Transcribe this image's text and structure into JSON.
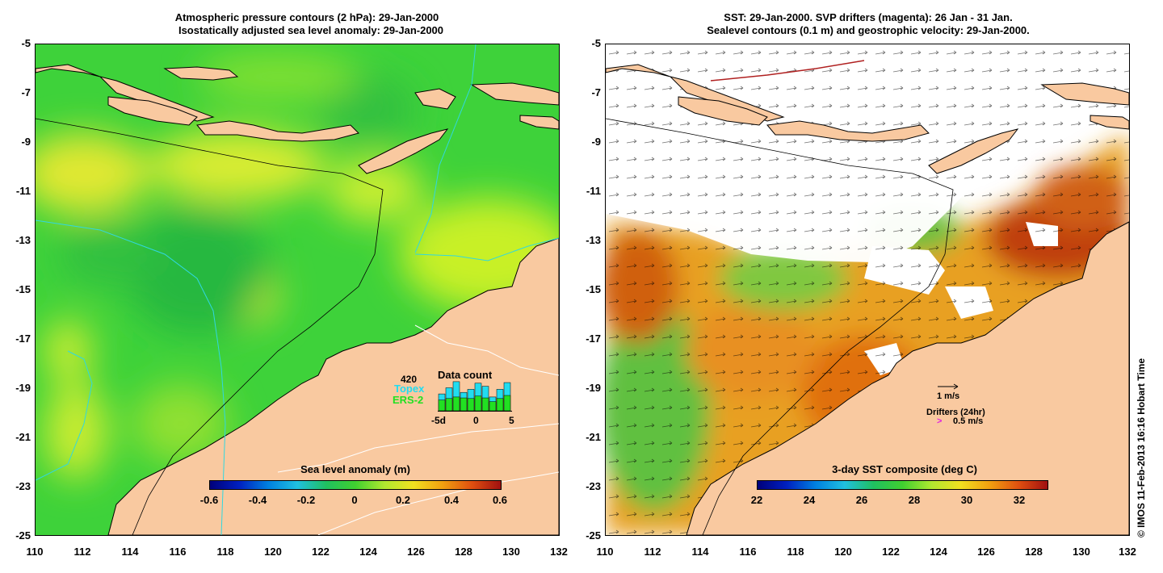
{
  "left": {
    "title_line1": "Atmospheric pressure contours (2 hPa): 29-Jan-2000",
    "title_line2": "Isostatically adjusted sea level anomaly: 29-Jan-2000",
    "colorbar": {
      "title": "Sea level anomaly (m)",
      "labels": [
        "-0.6",
        "-0.4",
        "-0.2",
        "0",
        "0.2",
        "0.4",
        "0.6"
      ]
    },
    "inset": {
      "count": "420",
      "title": "Data count",
      "topex_label": "Topex",
      "ers_label": "ERS-2",
      "x_labels": [
        "-5d",
        "0",
        "5"
      ],
      "topex_color": "#22dcf0",
      "ers_color": "#22e022",
      "bars": [
        {
          "topex": 0.55,
          "ers": 0.35
        },
        {
          "topex": 0.75,
          "ers": 0.4
        },
        {
          "topex": 0.95,
          "ers": 0.45
        },
        {
          "topex": 0.6,
          "ers": 0.42
        },
        {
          "topex": 0.7,
          "ers": 0.4
        },
        {
          "topex": 0.9,
          "ers": 0.48
        },
        {
          "topex": 0.8,
          "ers": 0.42
        },
        {
          "topex": 0.45,
          "ers": 0.3
        },
        {
          "topex": 0.7,
          "ers": 0.4
        },
        {
          "topex": 0.92,
          "ers": 0.5
        }
      ]
    }
  },
  "right": {
    "title_line1": "SST: 29-Jan-2000. SVP drifters (magenta): 26 Jan - 31 Jan.",
    "title_line2": "Sealevel contours (0.1 m) and geostrophic velocity: 29-Jan-2000.",
    "colorbar": {
      "title": "3-day SST composite (deg C)",
      "labels": [
        "22",
        "24",
        "26",
        "28",
        "30",
        "32"
      ]
    },
    "legend": {
      "velocity": "1 m/s",
      "drifters": "Drifters (24hr)",
      "drifter_speed": "0.5 m/s",
      "drifter_arrow": ">"
    }
  },
  "axes": {
    "y_labels": [
      "-5",
      "-7",
      "-9",
      "-11",
      "-13",
      "-15",
      "-17",
      "-19",
      "-21",
      "-23",
      "-25"
    ],
    "x_labels": [
      "110",
      "112",
      "114",
      "116",
      "118",
      "120",
      "122",
      "124",
      "126",
      "128",
      "130",
      "132"
    ]
  },
  "credit": "© IMOS 11-Feb-2013 16:16 Hobart Time",
  "colors": {
    "land": "#f9c9a0",
    "ocean_green": "#3ed23a",
    "ocean_yellow": "#d8ee30",
    "sst_warm": "#e07010",
    "sst_hot": "#b02010",
    "sst_green": "#50c040"
  }
}
